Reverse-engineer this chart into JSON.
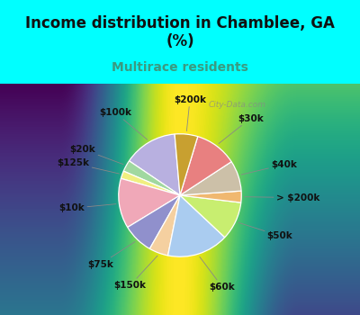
{
  "title": "Income distribution in Chamblee, GA\n(%)",
  "subtitle": "Multirace residents",
  "title_color": "#111111",
  "subtitle_color": "#3a9a80",
  "top_bg_color": "#00ffff",
  "chart_bg_top": "#c8f0e8",
  "chart_bg_bottom": "#d8f4d0",
  "labels": [
    "$100k",
    "$20k",
    "$125k",
    "$10k",
    "$75k",
    "$150k",
    "$60k",
    "$50k",
    "> $200k",
    "$40k",
    "$30k",
    "$200k"
  ],
  "values": [
    14,
    3,
    2,
    13,
    8,
    5,
    16,
    10,
    3,
    8,
    11,
    6
  ],
  "colors": [
    "#b8b0e0",
    "#a0d8a0",
    "#f0ef80",
    "#f0a8b8",
    "#9090cc",
    "#f5d0a0",
    "#aaccf0",
    "#c8ee70",
    "#f0b870",
    "#ccc0a8",
    "#e88080",
    "#c8a030"
  ],
  "start_angle": 95,
  "label_fontsize": 7.5,
  "title_fontsize": 12,
  "subtitle_fontsize": 10
}
